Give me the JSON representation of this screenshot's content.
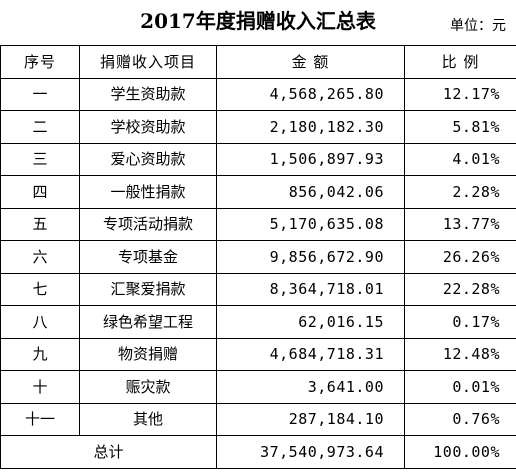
{
  "header": {
    "title": "2017年度捐赠收入汇总表",
    "unit": "单位：元"
  },
  "table": {
    "columns": [
      "序号",
      "捐赠收入项目",
      "金 额",
      "比 例"
    ],
    "rows": [
      {
        "seq": "一",
        "item": "学生资助款",
        "amount": "4,568,265.80",
        "ratio": "12.17%"
      },
      {
        "seq": "二",
        "item": "学校资助款",
        "amount": "2,180,182.30",
        "ratio": "5.81%"
      },
      {
        "seq": "三",
        "item": "爱心资助款",
        "amount": "1,506,897.93",
        "ratio": "4.01%"
      },
      {
        "seq": "四",
        "item": "一般性捐款",
        "amount": "856,042.06",
        "ratio": "2.28%"
      },
      {
        "seq": "五",
        "item": "专项活动捐款",
        "amount": "5,170,635.08",
        "ratio": "13.77%"
      },
      {
        "seq": "六",
        "item": "专项基金",
        "amount": "9,856,672.90",
        "ratio": "26.26%"
      },
      {
        "seq": "七",
        "item": "汇聚爱捐款",
        "amount": "8,364,718.01",
        "ratio": "22.28%"
      },
      {
        "seq": "八",
        "item": "绿色希望工程",
        "amount": "62,016.15",
        "ratio": "0.17%"
      },
      {
        "seq": "九",
        "item": "物资捐赠",
        "amount": "4,684,718.31",
        "ratio": "12.48%"
      },
      {
        "seq": "十",
        "item": "赈灾款",
        "amount": "3,641.00",
        "ratio": "0.01%"
      },
      {
        "seq": "十一",
        "item": "其他",
        "amount": "287,184.10",
        "ratio": "0.76%"
      }
    ],
    "total": {
      "label": "总计",
      "amount": "37,540,973.64",
      "ratio": "100.00%"
    }
  }
}
